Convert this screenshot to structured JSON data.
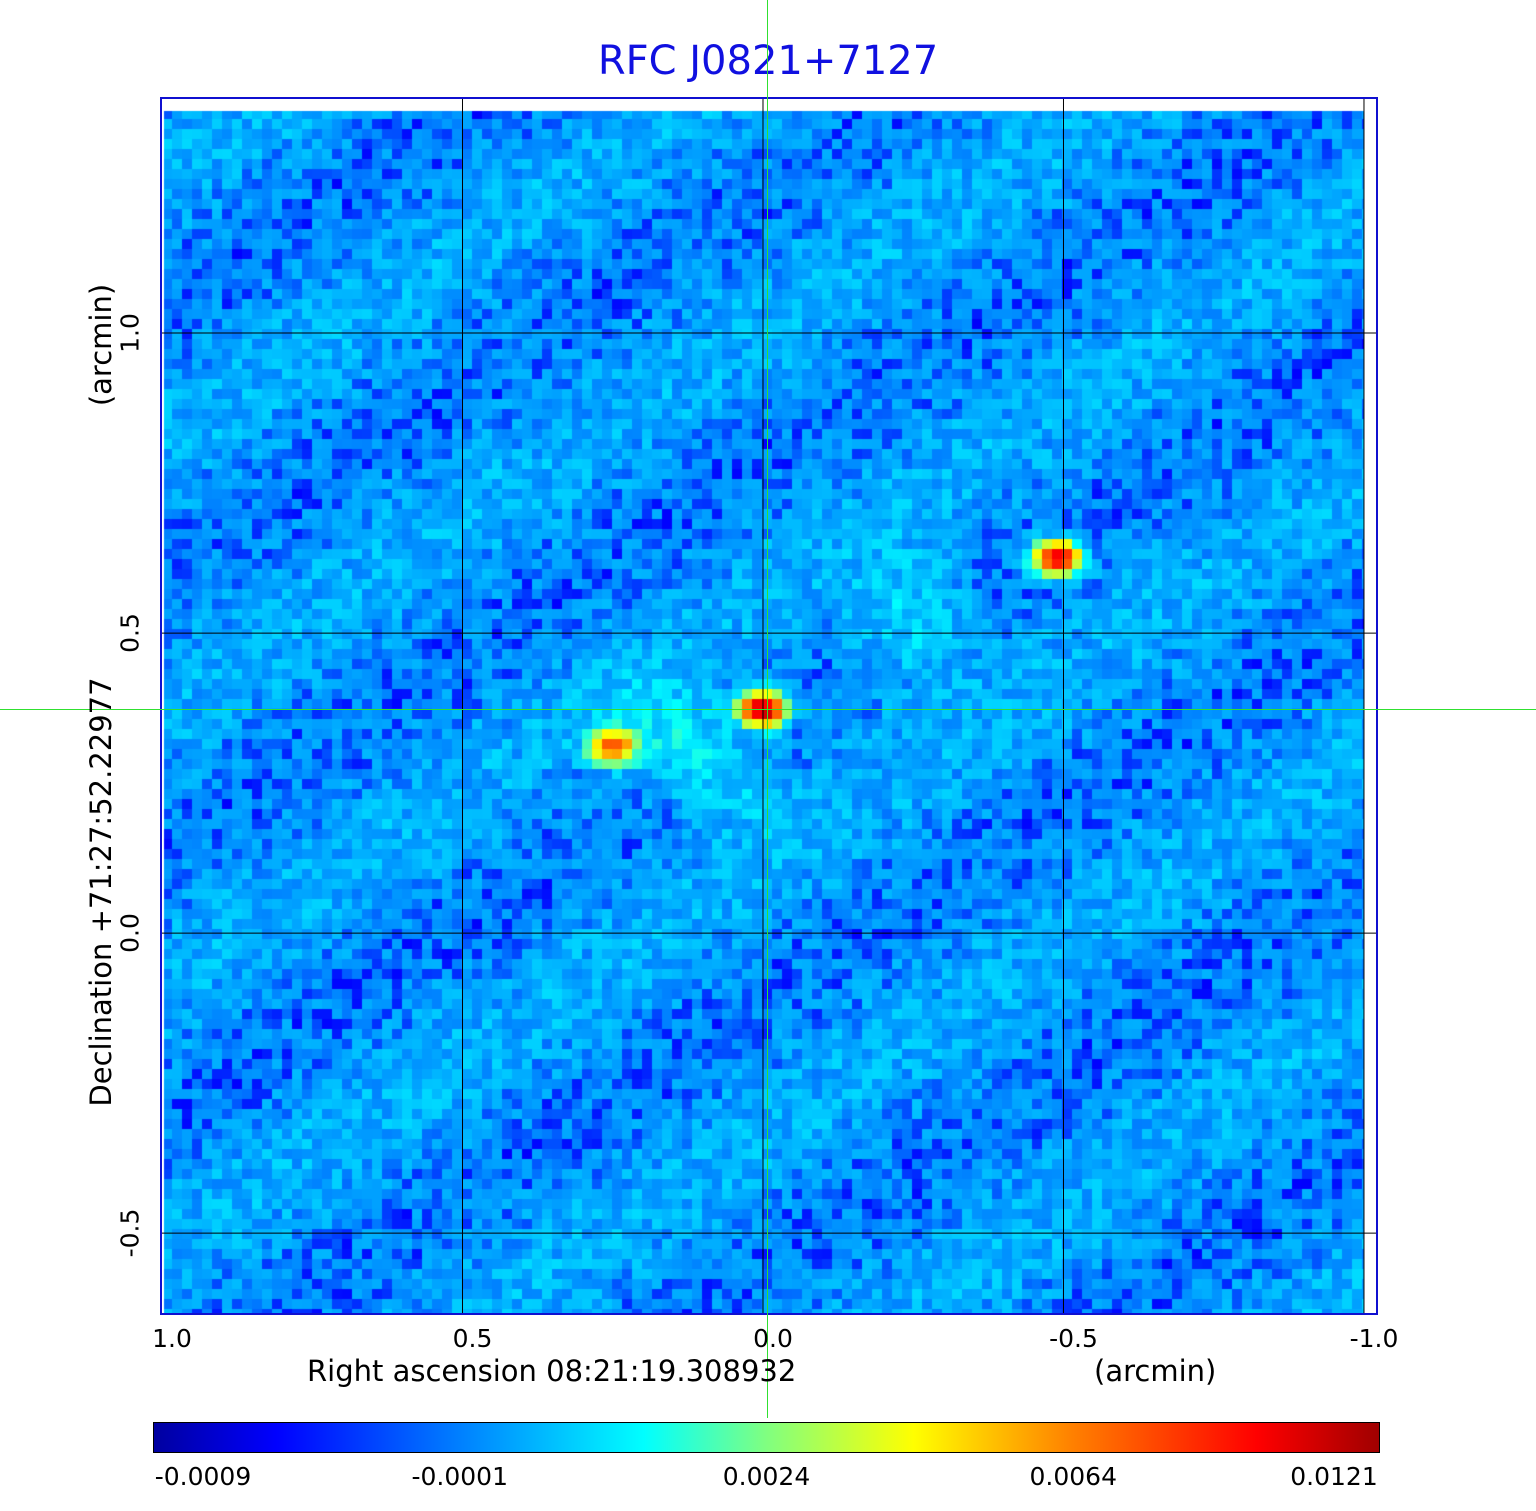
{
  "chart_data": {
    "type": "heatmap",
    "title": "RFC J0821+7127",
    "xlabel": "Right ascension  08:21:19.308932",
    "xunit": "(arcmin)",
    "ylabel": "Declination  +71:27:52.22977",
    "yunit": "(arcmin)",
    "xlim": [
      1.0,
      -1.02
    ],
    "ylim": [
      -0.633,
      1.39
    ],
    "x_ticks": [
      "1.0",
      "0.5",
      "0.0",
      "-0.5",
      "-1.0"
    ],
    "x_tick_values": [
      1.0,
      0.5,
      0.0,
      -0.5,
      -1.0
    ],
    "y_ticks": [
      "-0.5",
      "0.0",
      "0.5",
      "1.0"
    ],
    "y_tick_values": [
      -0.5,
      0.0,
      0.5,
      1.0
    ],
    "grid": true,
    "crosshair": [
      0.0,
      0.373
    ],
    "colorbar": {
      "tick_labels": [
        "-0.0009",
        "-0.0001",
        "0.0024",
        "0.0064",
        "0.0121"
      ],
      "tick_values": [
        -0.0009,
        -0.0001,
        0.0024,
        0.0064,
        0.0121
      ],
      "colormap": "jet",
      "placement": "bottom"
    },
    "sources": [
      {
        "x": 0.0,
        "y": 0.373,
        "peak": 0.0121
      },
      {
        "x": 0.25,
        "y": 0.31,
        "peak": 0.0075
      },
      {
        "x": -0.49,
        "y": 0.625,
        "peak": 0.011
      }
    ],
    "background_level": 0.0002,
    "noise_rms": 0.0005
  }
}
